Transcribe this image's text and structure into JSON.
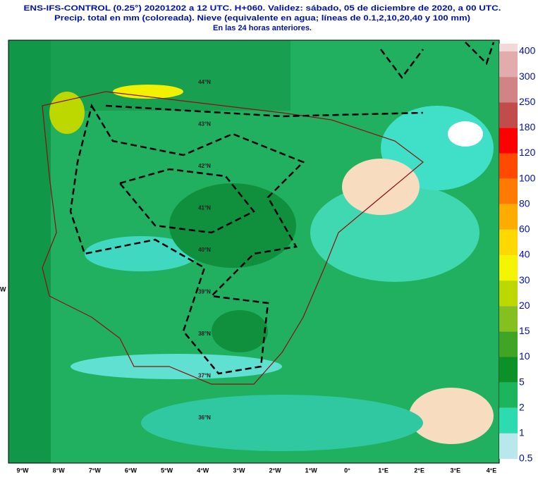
{
  "title_lines": [
    "ENS-IFS-CONTROL (0.25°) 20201202 a 12 UTC.  H+060. Validez: sábado, 05 de diciembre de 2020,  a  00 UTC.",
    "Precip. total en mm (coloreada). Nieve (equivalente en agua; líneas de 0.1,2,10,20,40 y 100 mm)",
    "En las 24 horas anteriores."
  ],
  "colorbar": {
    "labels": [
      "400",
      "300",
      "250",
      "180",
      "120",
      "100",
      "80",
      "60",
      "40",
      "30",
      "20",
      "15",
      "10",
      "5",
      "2",
      "1",
      "0.5"
    ],
    "colors": [
      "#f3d8d8",
      "#e2acac",
      "#d08484",
      "#c04c4c",
      "#ff0000",
      "#ff4a00",
      "#ff7a00",
      "#ffac00",
      "#ffd800",
      "#f4f400",
      "#bcd800",
      "#84c020",
      "#40a424",
      "#0c9028",
      "#1cb45c",
      "#2cdcb0",
      "#b8e8ec"
    ]
  },
  "longitude_labels": [
    "9°W",
    "8°W",
    "7°W",
    "6°W",
    "5°W",
    "4°W",
    "3°W",
    "2°W",
    "1°W",
    "0°",
    "1°E",
    "2°E",
    "3°E",
    "4°E"
  ],
  "latitude_labels": [
    "44°N",
    "43°N",
    "42°N",
    "41°N",
    "40°N",
    "39°N",
    "38°N",
    "37°N",
    "36°N"
  ],
  "edge_label": "W"
}
